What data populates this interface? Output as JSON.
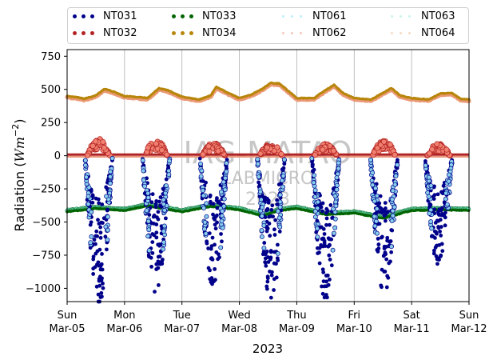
{
  "chart_data": {
    "type": "scatter",
    "title": "",
    "xlabel": "2023",
    "ylabel": "Radiation ($Wm^{-2}$)",
    "ylim": [
      -1100,
      800
    ],
    "xlim": [
      0,
      7
    ],
    "yticks": [
      750,
      500,
      250,
      0,
      -250,
      -500,
      -750,
      -1000
    ],
    "ytick_labels": [
      "750",
      "500",
      "250",
      "0",
      "−250",
      "−500",
      "−750",
      "−1000"
    ],
    "xtick_labels": [
      {
        "day": "Sun",
        "date": "Mar-05"
      },
      {
        "day": "Mon",
        "date": "Mar-06"
      },
      {
        "day": "Tue",
        "date": "Mar-07"
      },
      {
        "day": "Wed",
        "date": "Mar-08"
      },
      {
        "day": "Thu",
        "date": "Mar-09"
      },
      {
        "day": "Fri",
        "date": "Mar-10"
      },
      {
        "day": "Sat",
        "date": "Mar-11"
      },
      {
        "day": "Sun",
        "date": "Mar-12"
      }
    ],
    "grid": "vertical",
    "legend_position": "top",
    "watermark": [
      "IAG-MATAO",
      "LABMICRO",
      "2023"
    ],
    "series": [
      {
        "name": "NT031",
        "color": "#00008b",
        "role": "shortwave-net",
        "peaks": [
          -1080,
          -1000,
          -980,
          -1060,
          -1060,
          -990,
          -790
        ],
        "noon_times": [
          0.55,
          1.55,
          2.55,
          3.55,
          4.5,
          5.52,
          6.47
        ]
      },
      {
        "name": "NT032",
        "color": "#b22222",
        "role": "longwave-net",
        "base": 0,
        "peaks": [
          130,
          120,
          100,
          95,
          90,
          120,
          95
        ]
      },
      {
        "name": "NT033",
        "color": "#006400",
        "role": "longwave-in",
        "base": -400,
        "points": [
          [
            0,
            -420
          ],
          [
            0.5,
            -395
          ],
          [
            1,
            -410
          ],
          [
            1.4,
            -375
          ],
          [
            2,
            -420
          ],
          [
            2.5,
            -380
          ],
          [
            3,
            -405
          ],
          [
            3.4,
            -450
          ],
          [
            3.7,
            -410
          ],
          [
            4,
            -395
          ],
          [
            4.5,
            -440
          ],
          [
            5,
            -430
          ],
          [
            5.5,
            -470
          ],
          [
            6,
            -410
          ],
          [
            6.5,
            -405
          ],
          [
            7,
            -410
          ]
        ]
      },
      {
        "name": "NT034",
        "color": "#b8860b",
        "role": "longwave-out",
        "base": 420,
        "points": [
          [
            0,
            445
          ],
          [
            0.2,
            435
          ],
          [
            0.3,
            425
          ],
          [
            0.5,
            450
          ],
          [
            0.65,
            500
          ],
          [
            0.8,
            480
          ],
          [
            1,
            445
          ],
          [
            1.2,
            440
          ],
          [
            1.4,
            430
          ],
          [
            1.6,
            505
          ],
          [
            1.75,
            490
          ],
          [
            2,
            440
          ],
          [
            2.3,
            420
          ],
          [
            2.5,
            450
          ],
          [
            2.6,
            515
          ],
          [
            2.8,
            470
          ],
          [
            3,
            430
          ],
          [
            3.2,
            455
          ],
          [
            3.4,
            500
          ],
          [
            3.55,
            545
          ],
          [
            3.7,
            540
          ],
          [
            4,
            430
          ],
          [
            4.3,
            430
          ],
          [
            4.5,
            490
          ],
          [
            4.65,
            530
          ],
          [
            4.8,
            470
          ],
          [
            5,
            430
          ],
          [
            5.3,
            420
          ],
          [
            5.5,
            470
          ],
          [
            5.65,
            505
          ],
          [
            5.8,
            450
          ],
          [
            6,
            430
          ],
          [
            6.3,
            420
          ],
          [
            6.5,
            465
          ],
          [
            6.7,
            470
          ],
          [
            6.85,
            425
          ],
          [
            7,
            420
          ]
        ]
      },
      {
        "name": "NT061",
        "color": "#87ceeb",
        "role": "shortwave-net-sensor2"
      },
      {
        "name": "NT062",
        "color": "#ff7f50",
        "role": "longwave-net-sensor2"
      },
      {
        "name": "NT063",
        "color": "#7fffd4",
        "role": "longwave-in-sensor2"
      },
      {
        "name": "NT064",
        "color": "#f4a460",
        "role": "longwave-out-sensor2"
      }
    ]
  },
  "legend": {
    "items": [
      {
        "label": "NT031",
        "color": "#00008b",
        "style": "dots"
      },
      {
        "label": "NT033",
        "color": "#006400",
        "style": "dots"
      },
      {
        "label": "NT061",
        "color": "#bfeefc",
        "style": "faint"
      },
      {
        "label": "NT063",
        "color": "#c7f4ee",
        "style": "faint"
      },
      {
        "label": "NT032",
        "color": "#b22222",
        "style": "dots"
      },
      {
        "label": "NT034",
        "color": "#b8860b",
        "style": "dots"
      },
      {
        "label": "NT062",
        "color": "#f6c9bd",
        "style": "faint"
      },
      {
        "label": "NT064",
        "color": "#f5dcc2",
        "style": "faint"
      }
    ]
  }
}
